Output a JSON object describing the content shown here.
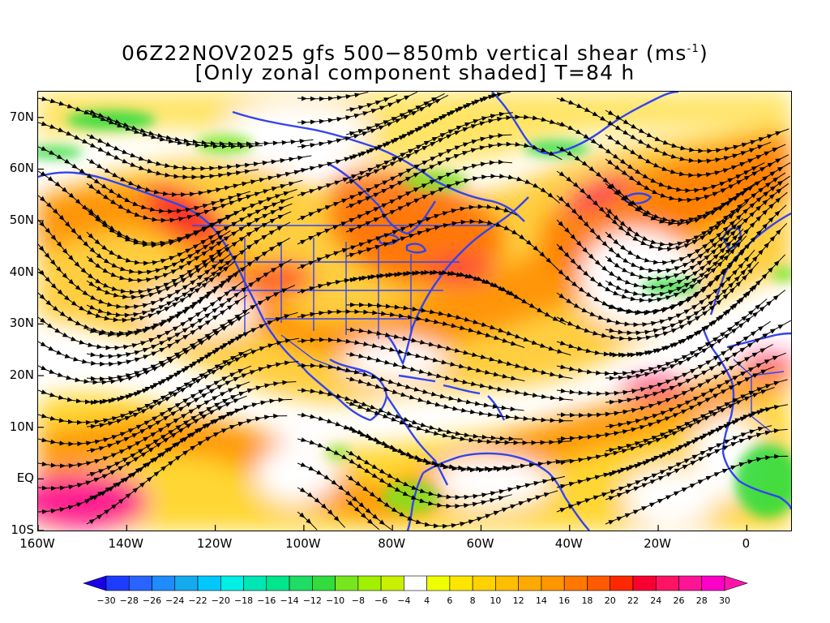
{
  "title": {
    "line1_prefix": "06Z22NOV2025 gfs 500−850mb vertical shear (ms",
    "line1_sup": "-1",
    "line1_suffix": ")",
    "line2": "[Only zonal component shaded] T=84 h"
  },
  "map": {
    "lon_range": [
      -160,
      10
    ],
    "lat_range": [
      -10,
      75
    ],
    "y_labels": [
      "70N",
      "60N",
      "50N",
      "40N",
      "30N",
      "20N",
      "10N",
      "EQ",
      "10S"
    ],
    "y_values": [
      70,
      60,
      50,
      40,
      30,
      20,
      10,
      0,
      -10
    ],
    "x_labels": [
      "160W",
      "140W",
      "120W",
      "100W",
      "80W",
      "60W",
      "40W",
      "20W",
      "0"
    ],
    "x_values": [
      -160,
      -140,
      -120,
      -100,
      -80,
      -60,
      -40,
      -20,
      0
    ],
    "coastline_color": "#3344ee",
    "streamline_color": "#000000"
  },
  "colorbar": {
    "labels": [
      "-30",
      "-28",
      "-26",
      "-24",
      "-22",
      "-20",
      "-18",
      "-16",
      "-14",
      "-12",
      "-10",
      "-8",
      "-6",
      "-4",
      "4",
      "6",
      "8",
      "10",
      "12",
      "14",
      "16",
      "18",
      "20",
      "22",
      "24",
      "26",
      "28",
      "30"
    ],
    "colors": [
      "#1a00e6",
      "#1e3cff",
      "#2864ff",
      "#1e8cff",
      "#14aaf0",
      "#00c8ff",
      "#00f0e6",
      "#00e6b4",
      "#00e68c",
      "#1edc64",
      "#32dc3c",
      "#78e61e",
      "#a0f000",
      "#c8f000",
      "#ffffff",
      "#f0ff00",
      "#ffe600",
      "#ffd200",
      "#ffbe00",
      "#ffaa00",
      "#ff9600",
      "#ff7800",
      "#ff5a00",
      "#ff2800",
      "#fa0032",
      "#ff1464",
      "#ff1496",
      "#ff00c8",
      "#ff14aa"
    ]
  }
}
